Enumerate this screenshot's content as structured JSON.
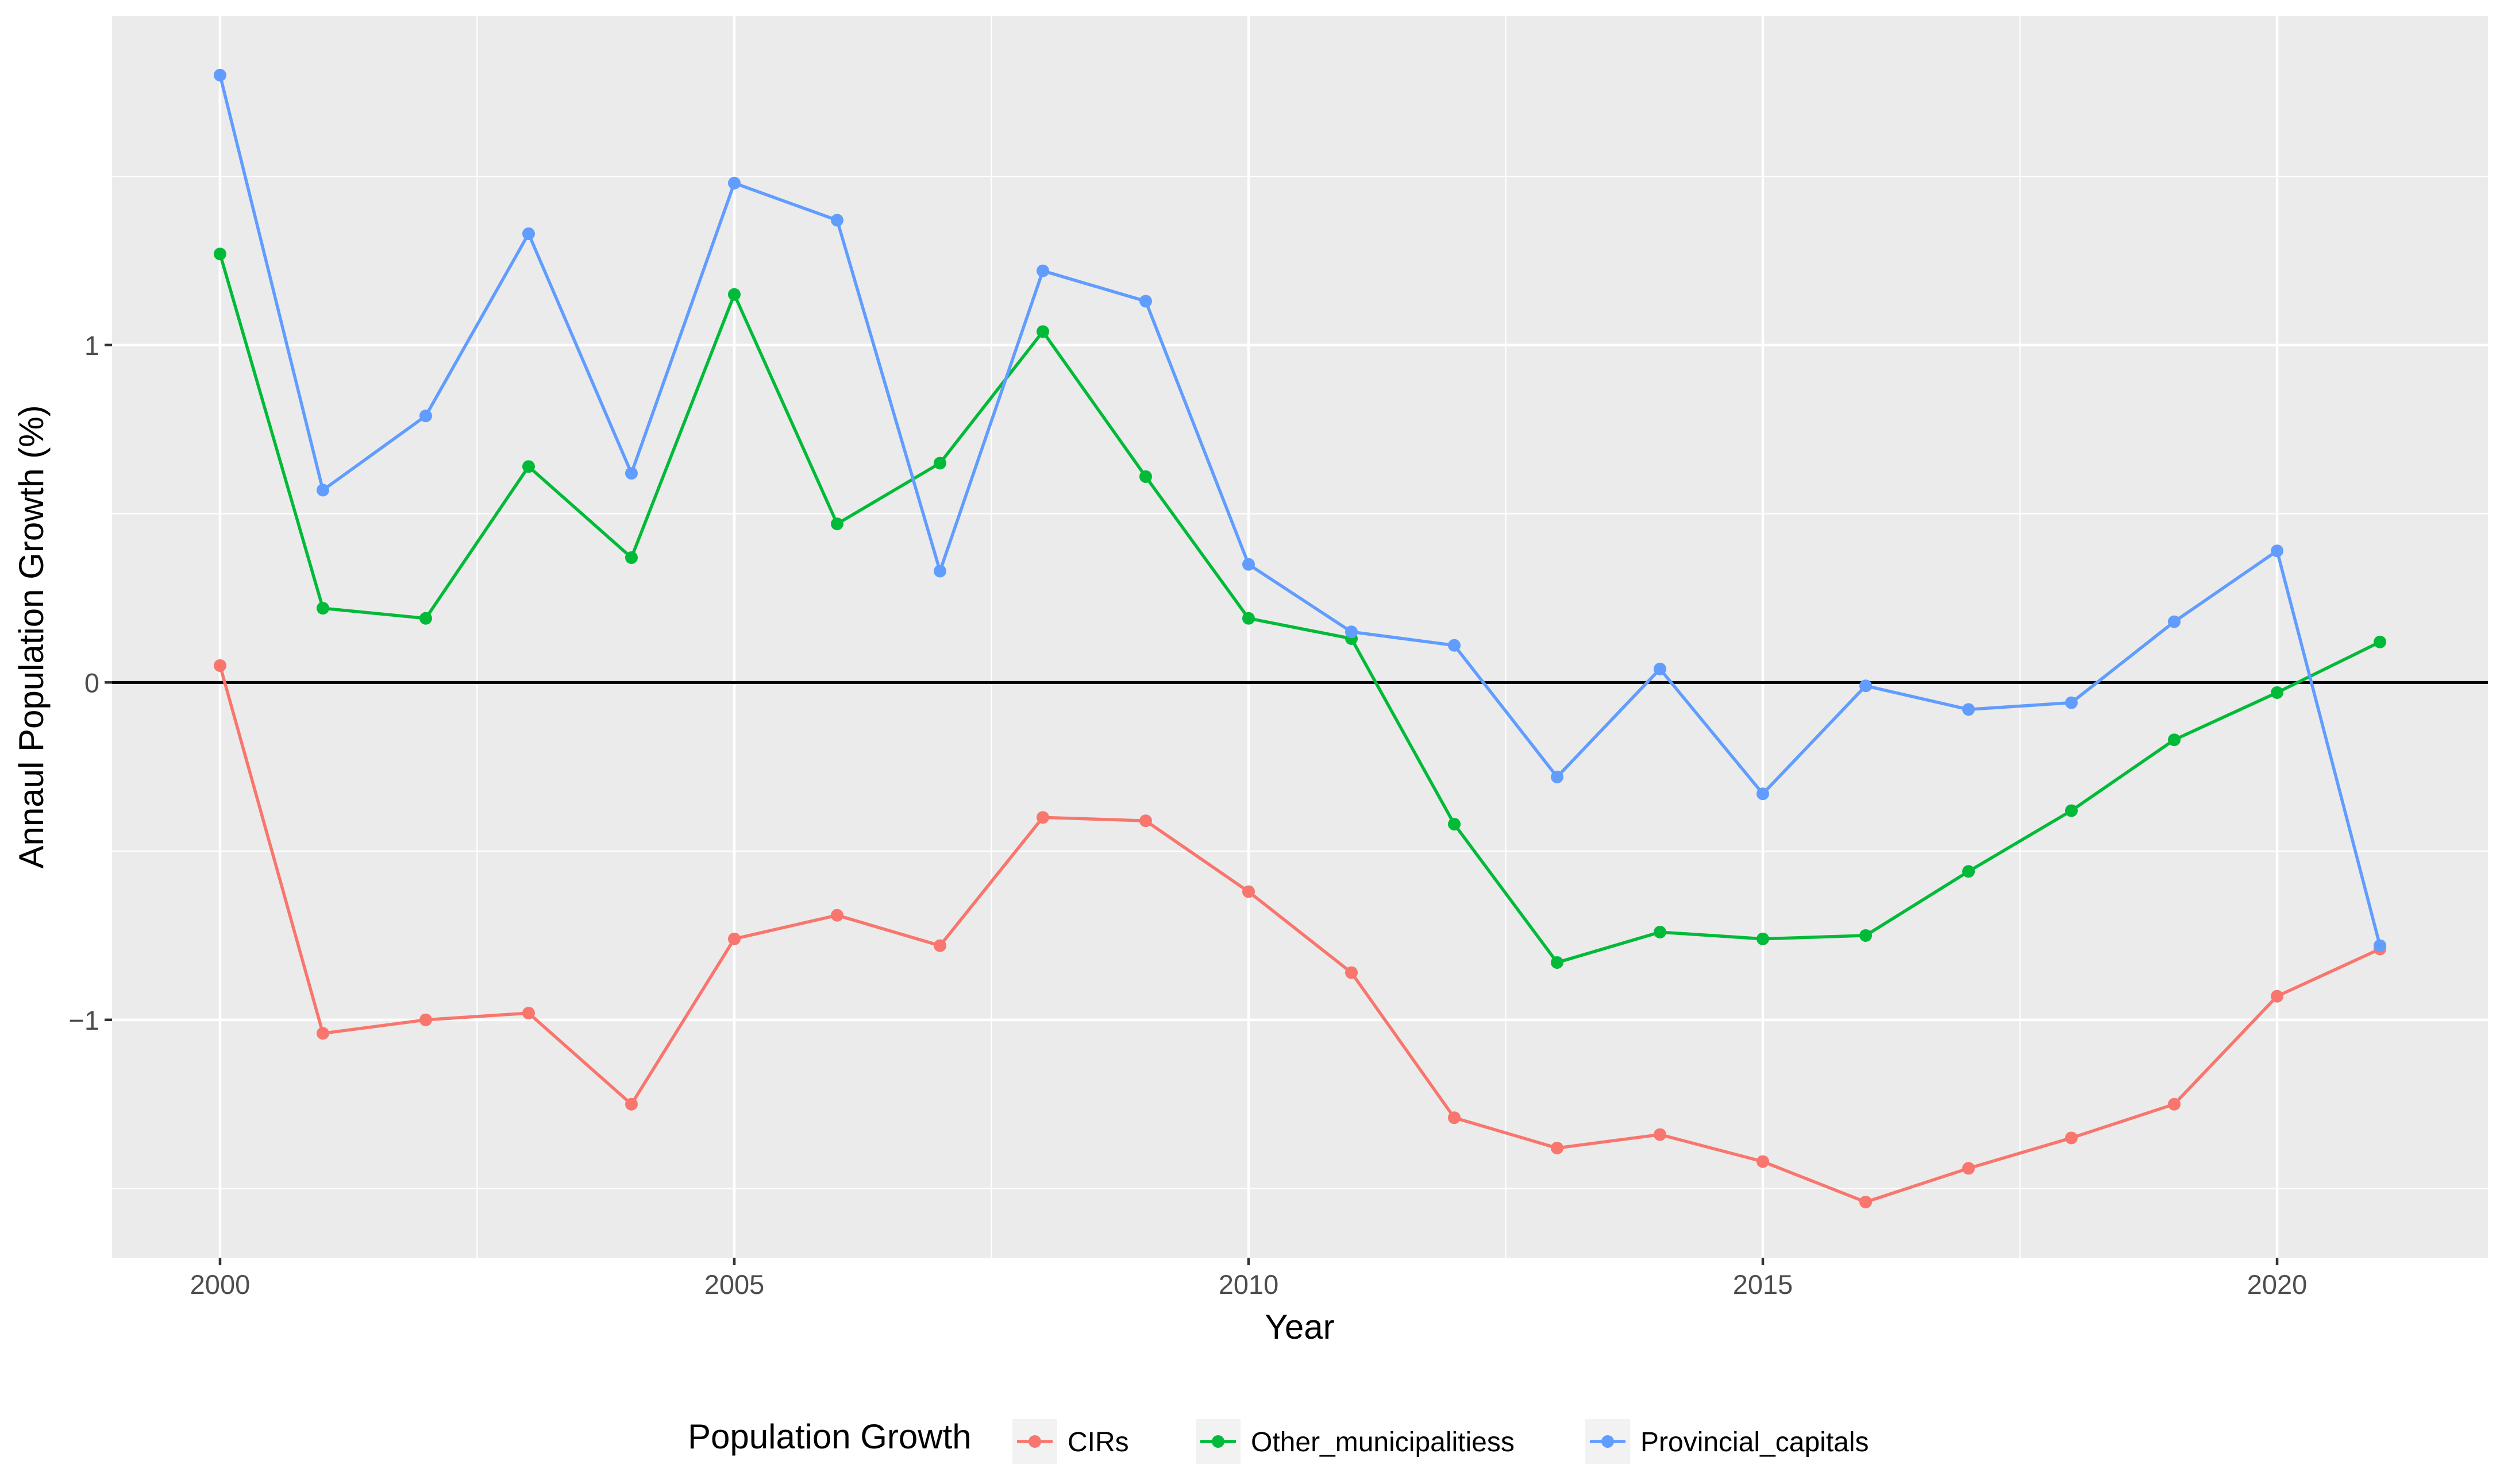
{
  "chart_data": {
    "type": "line",
    "title": "",
    "xlabel": "Year",
    "ylabel": "Annaul Population Growth (%)",
    "xlim": [
      1998.95,
      2022.05
    ],
    "ylim": [
      -1.705,
      1.975
    ],
    "x_ticks": [
      2000,
      2005,
      2010,
      2015,
      2020
    ],
    "x_tick_labels": [
      "2000",
      "2005",
      "2010",
      "2015",
      "2020"
    ],
    "y_ticks": [
      -1,
      0,
      1
    ],
    "y_tick_labels": [
      "−1",
      "0",
      "1"
    ],
    "reference_line": 0,
    "grid": true,
    "legend": {
      "title": "Population Growth",
      "position": "bottom"
    },
    "x": [
      2000,
      2001,
      2002,
      2003,
      2004,
      2005,
      2006,
      2007,
      2008,
      2009,
      2010,
      2011,
      2012,
      2013,
      2014,
      2015,
      2016,
      2017,
      2018,
      2019,
      2020,
      2021
    ],
    "series": [
      {
        "name": "CIRs",
        "color": "#F8766D",
        "values": [
          0.05,
          -1.04,
          -1.0,
          -0.98,
          -1.25,
          -0.76,
          -0.69,
          -0.78,
          -0.4,
          -0.41,
          -0.62,
          -0.86,
          -1.29,
          -1.38,
          -1.34,
          -1.42,
          -1.54,
          -1.44,
          -1.35,
          -1.25,
          -0.93,
          -0.79
        ]
      },
      {
        "name": "Other_municipalitiess",
        "color": "#00BA38",
        "values": [
          1.27,
          0.22,
          0.19,
          0.64,
          0.37,
          1.15,
          0.47,
          0.65,
          1.04,
          0.61,
          0.19,
          0.13,
          -0.42,
          -0.83,
          -0.74,
          -0.76,
          -0.75,
          -0.56,
          -0.38,
          -0.17,
          -0.03,
          0.12
        ]
      },
      {
        "name": "Provincial_capitals",
        "color": "#619CFF",
        "values": [
          1.8,
          0.57,
          0.79,
          1.33,
          0.62,
          1.48,
          1.37,
          0.33,
          1.22,
          1.13,
          0.35,
          0.15,
          0.11,
          -0.28,
          0.04,
          -0.33,
          -0.01,
          -0.08,
          -0.06,
          0.18,
          0.39,
          -0.78
        ]
      }
    ]
  }
}
